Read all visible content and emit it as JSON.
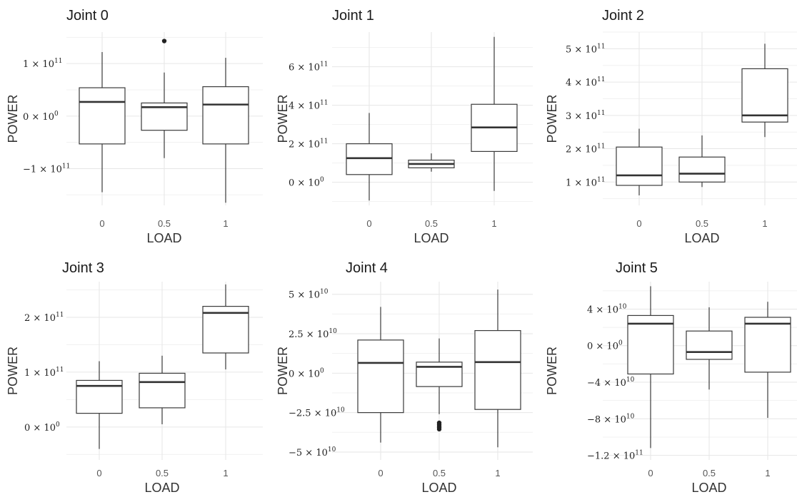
{
  "chart_data": [
    {
      "type": "box",
      "title": "Joint 0",
      "xlabel": "LOAD",
      "ylabel": "POWER",
      "categories": [
        "0",
        "0.5",
        "1"
      ],
      "y_ticks": [
        {
          "value": 100000000000,
          "mantissa": "1 × 10",
          "exponent": "11"
        },
        {
          "value": 0,
          "mantissa": "0 × 10",
          "exponent": "0"
        },
        {
          "value": -100000000000,
          "mantissa": "−1 × 10",
          "exponent": "11"
        }
      ],
      "ylim": [
        -170000000000,
        160000000000
      ],
      "boxes": [
        {
          "min": -145000000000,
          "q1": -53000000000,
          "median": 27000000000,
          "q3": 54000000000,
          "max": 122000000000,
          "outliers": []
        },
        {
          "min": -80000000000,
          "q1": -27000000000,
          "median": 17000000000,
          "q3": 25000000000,
          "max": 83000000000,
          "outliers": [
            143000000000
          ]
        },
        {
          "min": -165000000000,
          "q1": -53000000000,
          "median": 22000000000,
          "q3": 56000000000,
          "max": 111000000000,
          "outliers": []
        }
      ],
      "grid": true
    },
    {
      "type": "box",
      "title": "Joint 1",
      "xlabel": "LOAD",
      "ylabel": "POWER",
      "categories": [
        "0",
        "0.5",
        "1"
      ],
      "y_ticks": [
        {
          "value": 600000000000,
          "mantissa": "6 × 10",
          "exponent": "11"
        },
        {
          "value": 400000000000,
          "mantissa": "4 × 10",
          "exponent": "11"
        },
        {
          "value": 200000000000,
          "mantissa": "2 × 10",
          "exponent": "11"
        },
        {
          "value": 0,
          "mantissa": "0 × 10",
          "exponent": "0"
        }
      ],
      "ylim": [
        -120000000000,
        780000000000
      ],
      "boxes": [
        {
          "min": -95000000000,
          "q1": 40000000000,
          "median": 125000000000,
          "q3": 200000000000,
          "max": 360000000000,
          "outliers": []
        },
        {
          "min": 55000000000,
          "q1": 75000000000,
          "median": 95000000000,
          "q3": 115000000000,
          "max": 150000000000,
          "outliers": []
        },
        {
          "min": -45000000000,
          "q1": 160000000000,
          "median": 285000000000,
          "q3": 405000000000,
          "max": 755000000000,
          "outliers": []
        }
      ],
      "grid": true
    },
    {
      "type": "box",
      "title": "Joint 2",
      "xlabel": "LOAD",
      "ylabel": "POWER",
      "categories": [
        "0",
        "0.5",
        "1"
      ],
      "y_ticks": [
        {
          "value": 500000000000,
          "mantissa": "5 × 10",
          "exponent": "11"
        },
        {
          "value": 400000000000,
          "mantissa": "4 × 10",
          "exponent": "11"
        },
        {
          "value": 300000000000,
          "mantissa": "3 × 10",
          "exponent": "11"
        },
        {
          "value": 200000000000,
          "mantissa": "2 × 10",
          "exponent": "11"
        },
        {
          "value": 100000000000,
          "mantissa": "1 × 10",
          "exponent": "11"
        }
      ],
      "ylim": [
        30000000000,
        550000000000
      ],
      "boxes": [
        {
          "min": 60000000000,
          "q1": 90000000000,
          "median": 120000000000,
          "q3": 205000000000,
          "max": 260000000000,
          "outliers": []
        },
        {
          "min": 85000000000,
          "q1": 100000000000,
          "median": 125000000000,
          "q3": 175000000000,
          "max": 240000000000,
          "outliers": []
        },
        {
          "min": 235000000000,
          "q1": 280000000000,
          "median": 300000000000,
          "q3": 440000000000,
          "max": 515000000000,
          "outliers": []
        }
      ],
      "grid": true
    },
    {
      "type": "box",
      "title": "Joint 3",
      "xlabel": "LOAD",
      "ylabel": "POWER",
      "categories": [
        "0",
        "0.5",
        "1"
      ],
      "y_ticks": [
        {
          "value": 200000000000,
          "mantissa": "2 × 10",
          "exponent": "11"
        },
        {
          "value": 100000000000,
          "mantissa": "1 × 10",
          "exponent": "11"
        },
        {
          "value": 0,
          "mantissa": "0 × 10",
          "exponent": "0"
        }
      ],
      "ylim": [
        -60000000000,
        265000000000
      ],
      "boxes": [
        {
          "min": -40000000000,
          "q1": 25000000000,
          "median": 75000000000,
          "q3": 85000000000,
          "max": 120000000000,
          "outliers": []
        },
        {
          "min": 5000000000,
          "q1": 35000000000,
          "median": 82000000000,
          "q3": 98000000000,
          "max": 130000000000,
          "outliers": []
        },
        {
          "min": 105000000000,
          "q1": 135000000000,
          "median": 208000000000,
          "q3": 220000000000,
          "max": 260000000000,
          "outliers": []
        }
      ],
      "grid": true
    },
    {
      "type": "box",
      "title": "Joint 4",
      "xlabel": "LOAD",
      "ylabel": "POWER",
      "categories": [
        "0",
        "0.5",
        "1"
      ],
      "y_ticks": [
        {
          "value": 50000000000,
          "mantissa": "5 × 10",
          "exponent": "10"
        },
        {
          "value": 25000000000,
          "mantissa": "2.5 × 10",
          "exponent": "10"
        },
        {
          "value": 0,
          "mantissa": "0 × 10",
          "exponent": "0"
        },
        {
          "value": -25000000000,
          "mantissa": "−2.5 × 10",
          "exponent": "10"
        },
        {
          "value": -50000000000,
          "mantissa": "−5 × 10",
          "exponent": "10"
        }
      ],
      "ylim": [
        -55000000000,
        58000000000
      ],
      "boxes": [
        {
          "min": -44000000000,
          "q1": -25000000000,
          "median": 6500000000,
          "q3": 21000000000,
          "max": 42000000000,
          "outliers": []
        },
        {
          "min": -26000000000,
          "q1": -8500000000,
          "median": 4000000000,
          "q3": 7000000000,
          "max": 22000000000,
          "outliers": [
            -31500000000,
            -32500000000,
            -33500000000,
            -34500000000,
            -35500000000
          ]
        },
        {
          "min": -47000000000,
          "q1": -23000000000,
          "median": 7000000000,
          "q3": 27000000000,
          "max": 53000000000,
          "outliers": []
        }
      ],
      "grid": true
    },
    {
      "type": "box",
      "title": "Joint 5",
      "xlabel": "LOAD",
      "ylabel": "POWER",
      "categories": [
        "0",
        "0.5",
        "1"
      ],
      "y_ticks": [
        {
          "value": 40000000000,
          "mantissa": "4 × 10",
          "exponent": "10"
        },
        {
          "value": 0,
          "mantissa": "0 × 10",
          "exponent": "0"
        },
        {
          "value": -40000000000,
          "mantissa": "−4 × 10",
          "exponent": "10"
        },
        {
          "value": -80000000000,
          "mantissa": "−8 × 10",
          "exponent": "10"
        },
        {
          "value": -120000000000,
          "mantissa": "−1.2 × 10",
          "exponent": "11"
        }
      ],
      "ylim": [
        -125000000000,
        70000000000
      ],
      "boxes": [
        {
          "min": -112000000000,
          "q1": -31000000000,
          "median": 24000000000,
          "q3": 33000000000,
          "max": 65000000000,
          "outliers": []
        },
        {
          "min": -48000000000,
          "q1": -15000000000,
          "median": -7000000000,
          "q3": 16000000000,
          "max": 42000000000,
          "outliers": []
        },
        {
          "min": -79000000000,
          "q1": -29000000000,
          "median": 24000000000,
          "q3": 31000000000,
          "max": 48000000000,
          "outliers": []
        }
      ],
      "grid": true
    }
  ]
}
